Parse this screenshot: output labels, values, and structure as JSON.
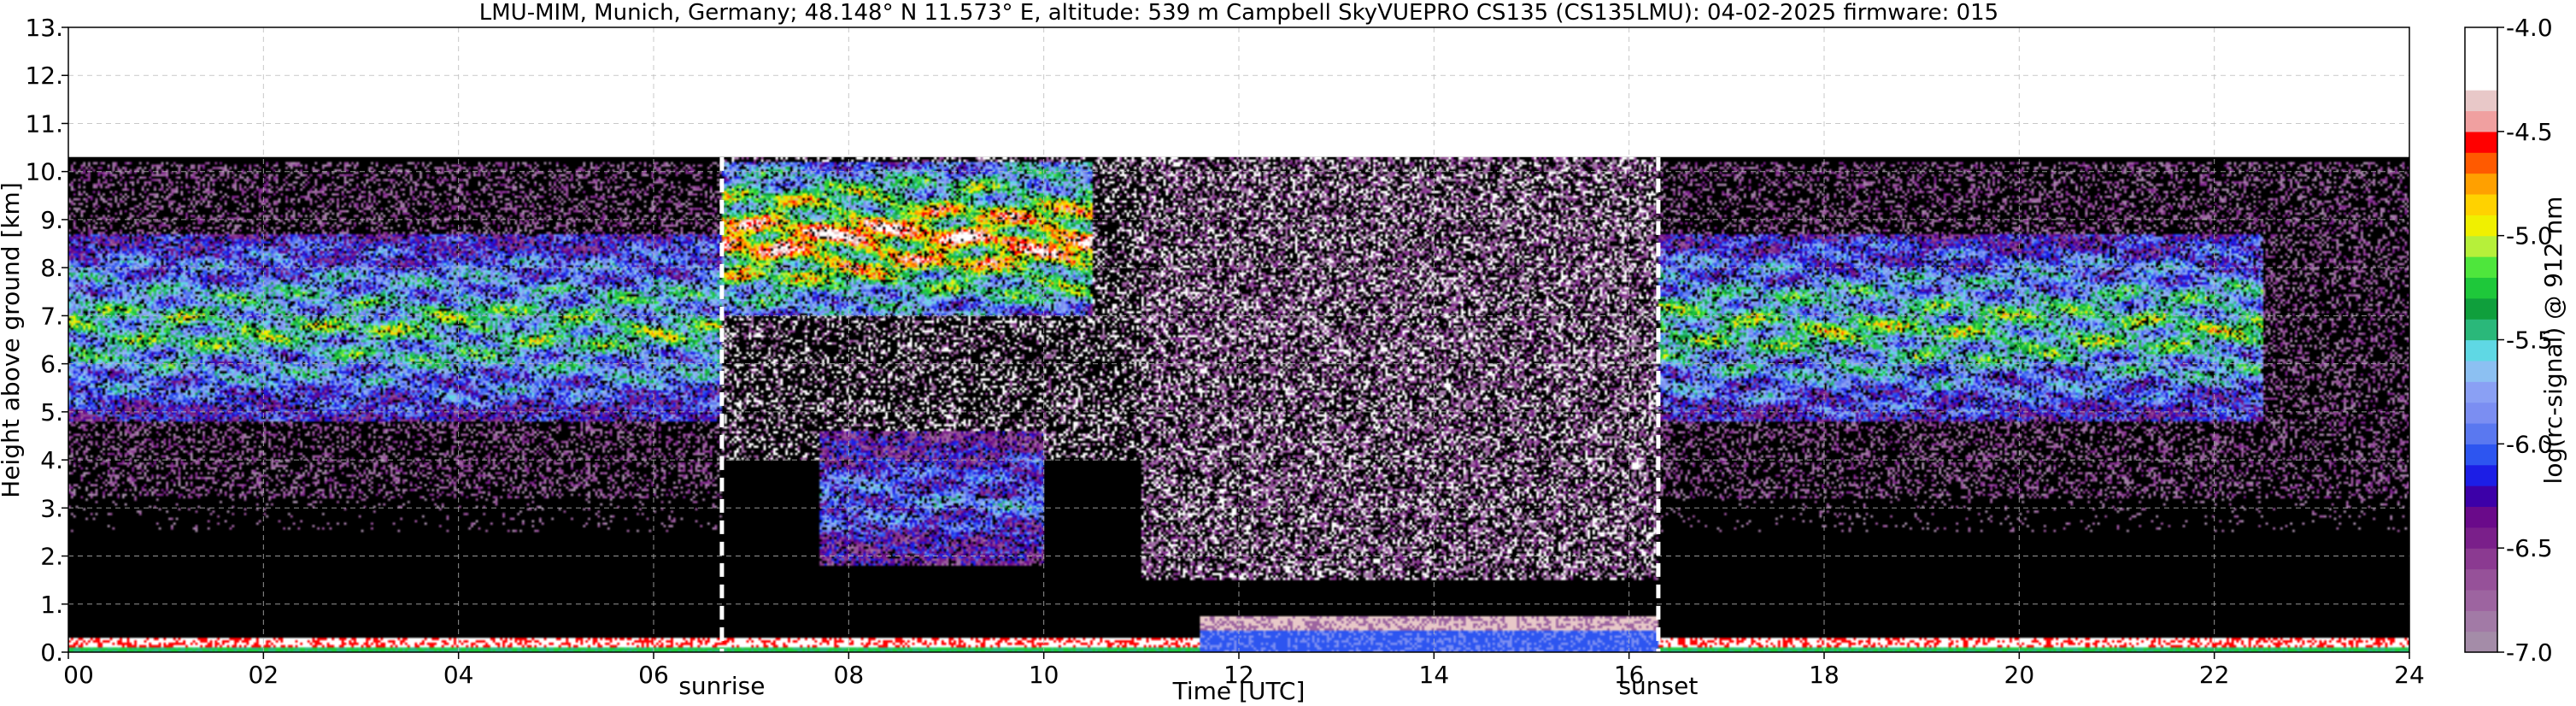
{
  "chart_data": {
    "type": "heatmap",
    "title": "LMU-MIM, Munich, Germany; 48.148° N 11.573° E, altitude: 539 m    Campbell SkyVUEPRO CS135 (CS135LMU): 04-02-2025    firmware: 015",
    "xlabel": "Time [UTC]",
    "ylabel": "Height above ground [km]",
    "xlim": [
      0,
      24
    ],
    "ylim": [
      0,
      13
    ],
    "x_ticks": [
      0,
      2,
      4,
      6,
      8,
      10,
      12,
      14,
      16,
      18,
      20,
      22,
      24
    ],
    "x_tick_labels": [
      "00",
      "02",
      "04",
      "06",
      "08",
      "10",
      "12",
      "14",
      "16",
      "18",
      "20",
      "22",
      "24"
    ],
    "y_ticks": [
      0,
      1,
      2,
      3,
      4,
      5,
      6,
      7,
      8,
      9,
      10,
      11,
      12,
      13
    ],
    "y_tick_labels": [
      "0.",
      "1.",
      "2.",
      "3.",
      "4.",
      "5.",
      "6.",
      "7.",
      "8.",
      "9.",
      "10.",
      "11.",
      "12.",
      "13."
    ],
    "grid": true,
    "measurement_top_km": 10.3,
    "events": [
      {
        "name": "sunrise",
        "label": "sunrise",
        "x": 6.7
      },
      {
        "name": "sunset",
        "label": "sunset",
        "x": 16.3
      }
    ],
    "colorbar": {
      "label": "log(rc-signal) @ 912 nm",
      "range": [
        -7.0,
        -4.0
      ],
      "ticks": [
        -7.0,
        -6.5,
        -6.0,
        -5.5,
        -5.0,
        -4.5,
        -4.0
      ],
      "tick_labels": [
        "-7.0",
        "-6.5",
        "-6.0",
        "-5.5",
        "-5.0",
        "-4.5",
        "-4.0"
      ],
      "colors": [
        "#a48ca8",
        "#a27aa6",
        "#9d64a0",
        "#965199",
        "#8b3a91",
        "#7a1f8a",
        "#6a0a8a",
        "#3c00a8",
        "#1c1ee6",
        "#2d55f0",
        "#5a78f0",
        "#7b8ef2",
        "#8aa0f4",
        "#8cc0f2",
        "#5fd8e4",
        "#2ab87a",
        "#0f9f3c",
        "#1ec83a",
        "#4ee63c",
        "#b6f03a",
        "#f0f000",
        "#ffd200",
        "#ffa000",
        "#ff5a00",
        "#ff0000",
        "#f0a0a0",
        "#e8c8c8",
        "#ffffff",
        "#ffffff",
        "#ffffff"
      ]
    },
    "layers": [
      {
        "x0": 0,
        "x1": 6.7,
        "y0": 4.8,
        "y1": 8.7,
        "level": 0.66
      },
      {
        "x0": 6.7,
        "x1": 10.5,
        "y0": 7.0,
        "y1": 10.2,
        "level": 0.98
      },
      {
        "x0": 7.7,
        "x1": 10.0,
        "y0": 1.8,
        "y1": 4.6,
        "level": 0.45
      },
      {
        "x0": 11.6,
        "x1": 16.3,
        "y0": 0.05,
        "y1": 0.7,
        "level": 0.3
      },
      {
        "x0": 16.3,
        "x1": 22.5,
        "y0": 4.8,
        "y1": 8.7,
        "level": 0.68
      }
    ]
  }
}
